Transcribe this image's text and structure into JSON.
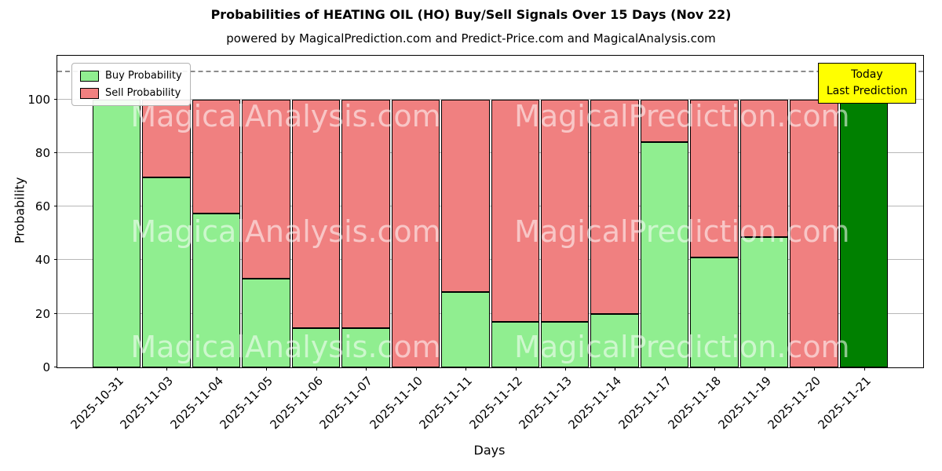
{
  "watermarks": [
    "MagicalAnalysis.com",
    "MagicalPrediction.com"
  ],
  "chart_data": {
    "type": "bar",
    "stacked": true,
    "title": "Probabilities of HEATING OIL (HO) Buy/Sell Signals Over 15 Days (Nov 22)",
    "subtitle": "powered by MagicalPrediction.com and Predict-Price.com and MagicalAnalysis.com",
    "xlabel": "Days",
    "ylabel": "Probability",
    "categories": [
      "2025-10-31",
      "2025-11-03",
      "2025-11-04",
      "2025-11-05",
      "2025-11-06",
      "2025-11-07",
      "2025-11-10",
      "2025-11-11",
      "2025-11-12",
      "2025-11-13",
      "2025-11-14",
      "2025-11-17",
      "2025-11-18",
      "2025-11-19",
      "2025-11-20",
      "2025-11-21"
    ],
    "series": [
      {
        "name": "Buy Probability",
        "color": "#90ee90",
        "values": [
          100,
          71,
          57.5,
          33,
          14.5,
          14.5,
          0,
          28,
          17,
          17,
          20,
          84,
          41,
          48.5,
          0,
          100
        ]
      },
      {
        "name": "Sell Probability",
        "color": "#f08080",
        "values": [
          0,
          29,
          42.5,
          67,
          85.5,
          85.5,
          100,
          72,
          83,
          83,
          80,
          16,
          59,
          51.5,
          100,
          0
        ]
      }
    ],
    "today_index": 15,
    "today_color": "#008000",
    "bar_edge_color": "#000000",
    "yticks": [
      0,
      20,
      40,
      60,
      80,
      100
    ],
    "ylim": [
      0,
      116
    ],
    "dashed_line_y": 110,
    "grid": true,
    "legend_position": "upper left",
    "annotation": {
      "lines": [
        "Today",
        "Last Prediction"
      ],
      "bg": "#ffff00"
    }
  }
}
